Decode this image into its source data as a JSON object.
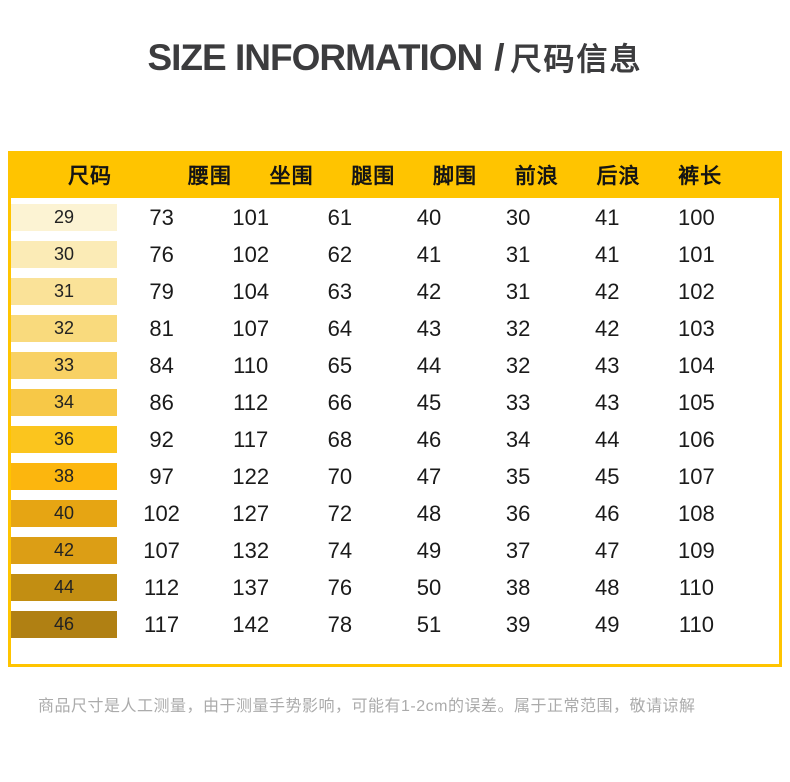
{
  "title": {
    "english": "SIZE INFORMATION",
    "separator": "/",
    "chinese": "尺码信息"
  },
  "chart_data": {
    "type": "table",
    "title": "SIZE INFORMATION / 尺码信息",
    "columns": [
      "尺码",
      "腰围",
      "坐围",
      "腿围",
      "脚围",
      "前浪",
      "后浪",
      "裤长"
    ],
    "rows": [
      [
        29,
        73,
        101,
        61,
        40,
        30,
        41,
        100
      ],
      [
        30,
        76,
        102,
        62,
        41,
        31,
        41,
        101
      ],
      [
        31,
        79,
        104,
        63,
        42,
        31,
        42,
        102
      ],
      [
        32,
        81,
        107,
        64,
        43,
        32,
        42,
        103
      ],
      [
        33,
        84,
        110,
        65,
        44,
        32,
        43,
        104
      ],
      [
        34,
        86,
        112,
        66,
        45,
        33,
        43,
        105
      ],
      [
        36,
        92,
        117,
        68,
        46,
        34,
        44,
        106
      ],
      [
        38,
        97,
        122,
        70,
        47,
        35,
        45,
        107
      ],
      [
        40,
        102,
        127,
        72,
        48,
        36,
        46,
        108
      ],
      [
        42,
        107,
        132,
        74,
        49,
        37,
        47,
        109
      ],
      [
        44,
        112,
        137,
        76,
        50,
        38,
        48,
        110
      ],
      [
        46,
        117,
        142,
        78,
        51,
        39,
        49,
        110
      ]
    ],
    "size_row_colors": [
      "#FCF3D3",
      "#FBEBB6",
      "#FAE298",
      "#F9DA7D",
      "#F8D164",
      "#F7C847",
      "#FBC51E",
      "#FCB60E",
      "#E6A513",
      "#DC9E15",
      "#C28E12",
      "#B08013"
    ],
    "layout": {
      "header_background": "#FFC400",
      "border_color": "#FFC400",
      "grid": false
    }
  },
  "footer": {
    "note": "商品尺寸是人工测量，由于测量手势影响，可能有1-2cm的误差。属于正常范围，敬请谅解"
  },
  "colors": {
    "accent": "#FFC400",
    "title_text": "#3C3C3E",
    "body_text": "#1A1A1A",
    "footer_text": "#ABABAB"
  }
}
